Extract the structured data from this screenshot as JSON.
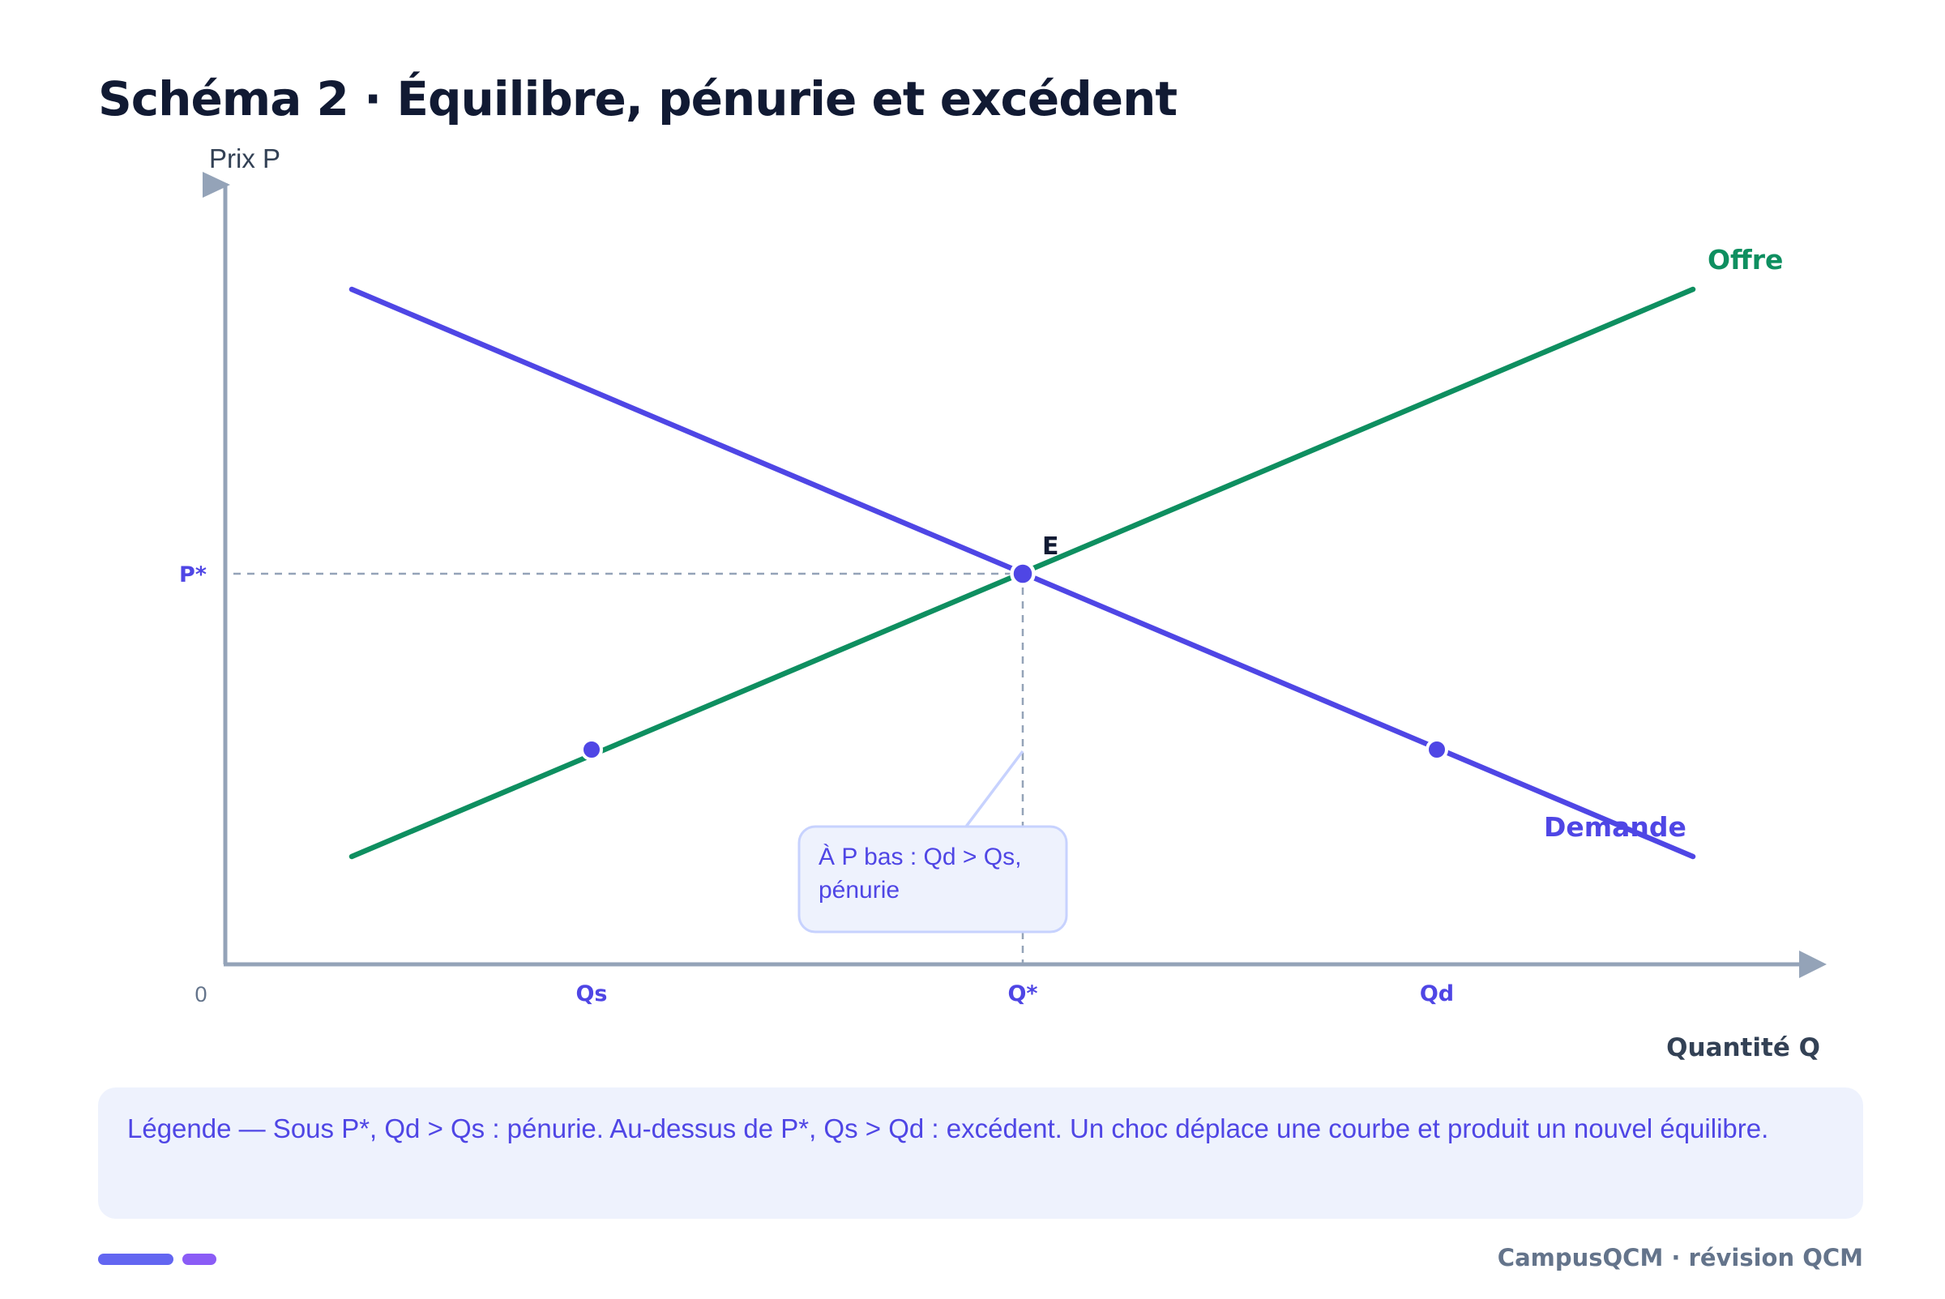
{
  "title": "Schéma 2 · Équilibre, pénurie et excédent",
  "diagram": {
    "y_axis_label": "Prix P",
    "x_axis_label": "Quantité Q",
    "origin_label": "0",
    "price_label": "P*",
    "equilibrium_label": "E",
    "supply_label": "Offre",
    "demand_label": "Demande",
    "x_ticks": [
      "Qs",
      "Q*",
      "Qd"
    ],
    "callout": {
      "line1": "À P bas : Qd > Qs,",
      "line2": "pénurie"
    }
  },
  "legend": "Légende — Sous P*, Qd > Qs : pénurie. Au-dessus de P*, Qs > Qd : excédent. Un choc déplace une courbe et produit un nouvel équilibre.",
  "footer": "CampusQCM · révision QCM",
  "colors": {
    "demand": "#4f46e5",
    "supply": "#0e8f60",
    "axis": "#94a3b8",
    "dashed": "#94a3b8",
    "title": "#111a33",
    "callout_bg": "#eef2fd",
    "callout_border": "#c7d2fe",
    "legend_bg": "#eef2fd",
    "deco_primary": "#6366f1",
    "deco_secondary": "#8b5cf6"
  }
}
